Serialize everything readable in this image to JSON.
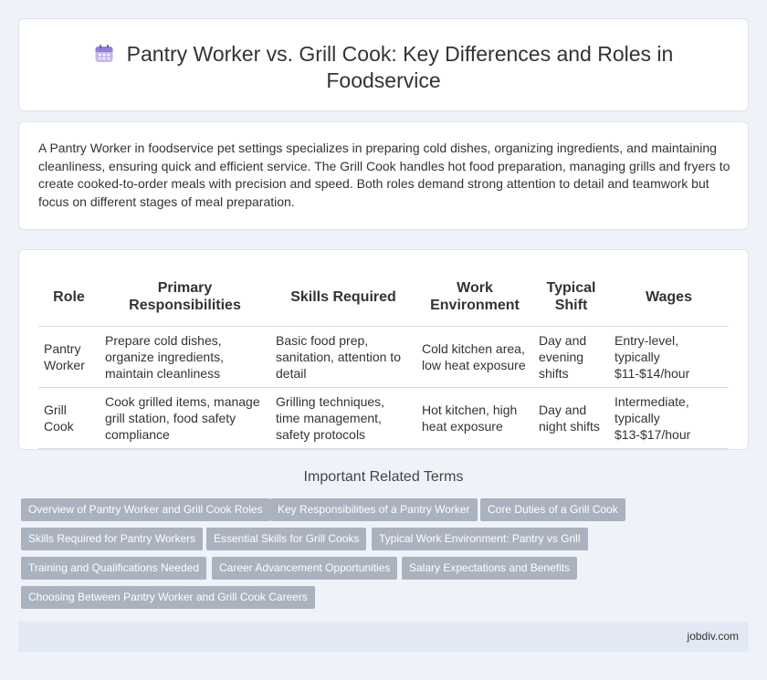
{
  "header": {
    "title": "Pantry Worker vs. Grill Cook: Key Differences and Roles in Foodservice",
    "icon": "calendar-icon"
  },
  "intro": {
    "text": "A Pantry Worker in foodservice pet settings specializes in preparing cold dishes, organizing ingredients, and maintaining cleanliness, ensuring quick and efficient service. The Grill Cook handles hot food preparation, managing grills and fryers to create cooked-to-order meals with precision and speed. Both roles demand strong attention to detail and teamwork but focus on different stages of meal preparation."
  },
  "table": {
    "headers": [
      "Role",
      "Primary Responsibilities",
      "Skills Required",
      "Work Environment",
      "Typical Shift",
      "Wages"
    ],
    "rows": [
      [
        "Pantry Worker",
        "Prepare cold dishes, organize ingredients, maintain cleanliness",
        "Basic food prep, sanitation, attention to detail",
        "Cold kitchen area, low heat exposure",
        "Day and evening shifts",
        "Entry-level, typically $11-$14/hour"
      ],
      [
        "Grill Cook",
        "Cook grilled items, manage grill station, food safety compliance",
        "Grilling techniques, time management, safety protocols",
        "Hot kitchen, high heat exposure",
        "Day and night shifts",
        "Intermediate, typically $13-$17/hour"
      ]
    ]
  },
  "related": {
    "title": "Important Related Terms",
    "tags": [
      "Overview of Pantry Worker and Grill Cook Roles",
      "Key Responsibilities of a Pantry Worker",
      "Core Duties of a Grill Cook",
      "Skills Required for Pantry Workers",
      "Essential Skills for Grill Cooks",
      "Typical Work Environment: Pantry vs Grill",
      "Training and Qualifications Needed",
      "Career Advancement Opportunities",
      "Salary Expectations and Benefits",
      "Choosing Between Pantry Worker and Grill Cook Careers"
    ]
  },
  "footer": {
    "site": "jobdiv.com"
  },
  "colors": {
    "background": "#eff2f8",
    "tag": "#aab2bf",
    "footer": "#e3e9f4"
  }
}
